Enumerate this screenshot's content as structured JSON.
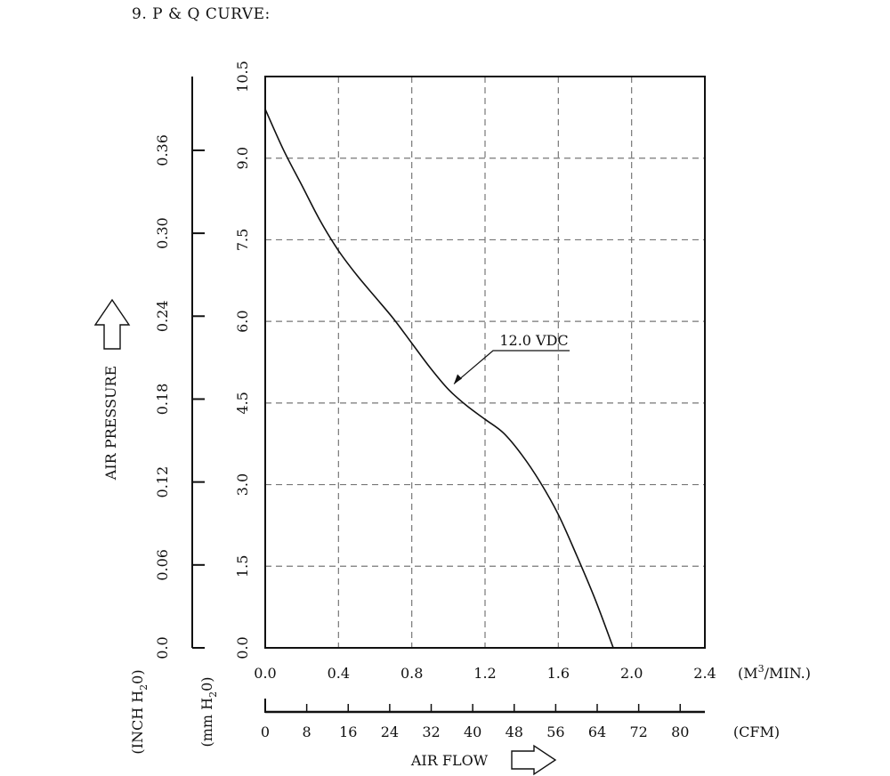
{
  "header": {
    "title": "9. P & Q CURVE:"
  },
  "chart_data": {
    "type": "line",
    "title": "",
    "xlabel": "AIR FLOW",
    "ylabel": "AIR PRESSURE",
    "x_unit": "(M³/MIN.)",
    "x_unit_parts": [
      "(M",
      "3",
      "/MIN.)"
    ],
    "xlim": [
      0,
      2.4
    ],
    "x_ticks": [
      "0.0",
      "0.4",
      "0.8",
      "1.2",
      "1.6",
      "2.0",
      "2.4"
    ],
    "secondary_x": {
      "unit": "(CFM)",
      "lim": [
        0,
        84.76
      ],
      "ticks": [
        "0",
        "8",
        "16",
        "24",
        "32",
        "40",
        "48",
        "56",
        "64",
        "72",
        "80"
      ]
    },
    "ylim": [
      0,
      10.5
    ],
    "y_unit": "(mm H₂0)",
    "y_unit_parts": [
      "(mm H",
      "2",
      "0)"
    ],
    "y_ticks": [
      "0.0",
      "1.5",
      "3.0",
      "4.5",
      "6.0",
      "7.5",
      "9.0",
      "10.5"
    ],
    "secondary_y": {
      "unit": "(INCH H₂0)",
      "unit_parts": [
        "(INCH H",
        "2",
        "0)"
      ],
      "lim": [
        0,
        0.4134
      ],
      "ticks": [
        "0.0",
        "0.06",
        "0.12",
        "0.18",
        "0.24",
        "0.30",
        "0.36"
      ]
    },
    "grid": true,
    "series": [
      {
        "name": "12.0 VDC",
        "x": [
          0.0,
          0.1,
          0.2,
          0.3,
          0.4,
          0.5,
          0.6,
          0.7,
          0.8,
          0.9,
          1.0,
          1.1,
          1.2,
          1.3,
          1.4,
          1.5,
          1.6,
          1.7,
          1.8,
          1.9
        ],
        "y": [
          9.9,
          9.15,
          8.5,
          7.85,
          7.3,
          6.85,
          6.45,
          6.05,
          5.6,
          5.15,
          4.75,
          4.45,
          4.2,
          3.95,
          3.55,
          3.05,
          2.45,
          1.7,
          0.9,
          0.0
        ]
      }
    ],
    "annotations": [
      {
        "text": "12.0 VDC",
        "points_to_x": 1.03,
        "points_to_y": 4.85
      }
    ],
    "colors": {
      "line": "#111111",
      "grid": "#777777",
      "frame": "#111111"
    }
  }
}
